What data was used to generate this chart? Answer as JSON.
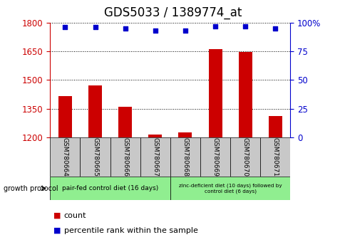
{
  "title": "GDS5033 / 1389774_at",
  "samples": [
    "GSM780664",
    "GSM780665",
    "GSM780666",
    "GSM780667",
    "GSM780668",
    "GSM780669",
    "GSM780670",
    "GSM780671"
  ],
  "count_values": [
    1415,
    1470,
    1360,
    1215,
    1225,
    1660,
    1645,
    1310
  ],
  "percentile_values": [
    96,
    96,
    95,
    93,
    93,
    97,
    97,
    95
  ],
  "ylim_left": [
    1200,
    1800
  ],
  "ylim_right": [
    0,
    100
  ],
  "yticks_left": [
    1200,
    1350,
    1500,
    1650,
    1800
  ],
  "yticks_right": [
    0,
    25,
    50,
    75,
    100
  ],
  "ytick_labels_right": [
    "0",
    "25",
    "50",
    "75",
    "100%"
  ],
  "bar_color": "#cc0000",
  "scatter_color": "#0000cc",
  "group1_label": "pair-fed control diet (16 days)",
  "group2_label": "zinc-deficient diet (10 days) followed by\ncontrol diet (6 days)",
  "group1_indices": [
    0,
    1,
    2,
    3
  ],
  "group2_indices": [
    4,
    5,
    6,
    7
  ],
  "group_color": "#90ee90",
  "label_color_left": "#cc0000",
  "label_color_right": "#0000cc",
  "xlabel_area_color": "#c8c8c8",
  "protocol_label": "growth protocol",
  "title_fontsize": 12,
  "tick_fontsize": 8.5,
  "sample_fontsize": 6.5,
  "group_fontsize": 6.5,
  "legend_fontsize": 8
}
